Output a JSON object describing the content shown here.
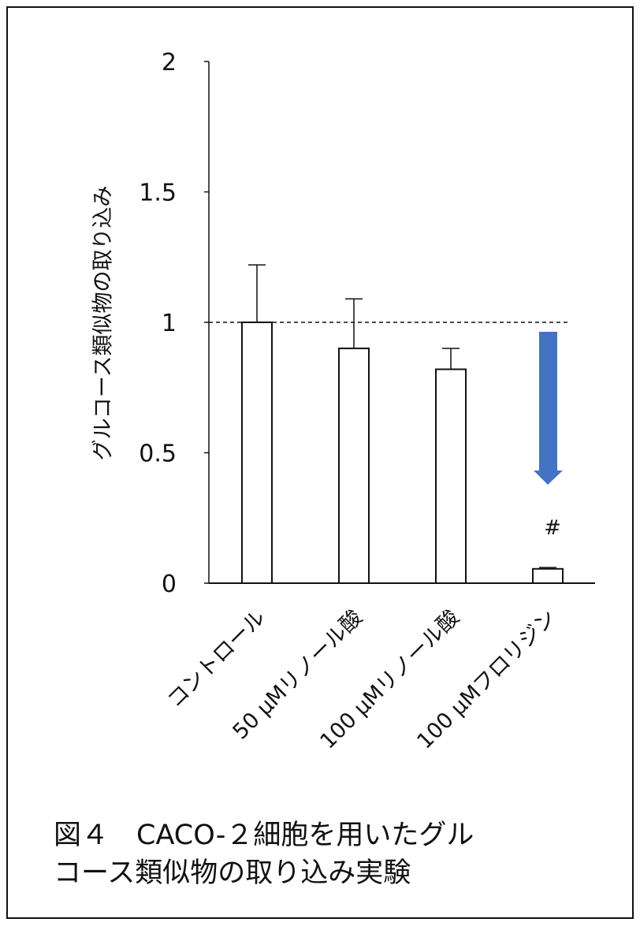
{
  "chart_data": {
    "type": "bar",
    "ylabel": "グルコース類似物の取り込み",
    "ylim": [
      0,
      2
    ],
    "yticks": [
      "0",
      "0.5",
      "1",
      "1.5",
      "2"
    ],
    "ytick_values": [
      0,
      0.5,
      1,
      1.5,
      2
    ],
    "categories": [
      "コントロール",
      "50 μMリノール酸",
      "100 μMリノール酸",
      "100 μMフロリジン"
    ],
    "values": [
      1.0,
      0.9,
      0.82,
      0.055
    ],
    "errors": [
      0.22,
      0.19,
      0.08,
      0.005
    ],
    "reference_line": 1,
    "annotation": "#",
    "bar_fill": "#ffffff",
    "bar_edge": "#111111",
    "arrow_color": "#4472c4",
    "grid": false
  },
  "caption": {
    "line1": "図４　CACO-２細胞を用いたグル",
    "line2": "コース類似物の取り込み実験"
  }
}
